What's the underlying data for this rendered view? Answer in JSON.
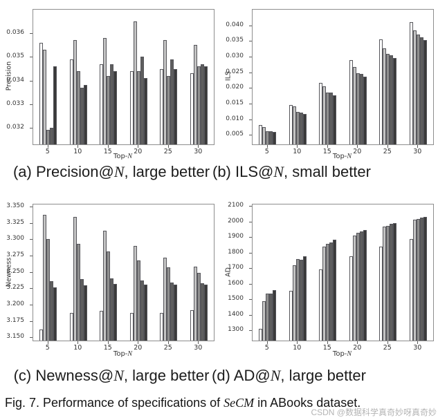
{
  "figure": {
    "caption": {
      "prefix": "Fig. 7. Performance of specifications of ",
      "math": "SeCM",
      "suffix": " in ABooks dataset."
    },
    "watermark": "CSDN @数据科学真奇妙呀真奇妙"
  },
  "style": {
    "bar_colors": [
      "#ffffff",
      "#c3c3c3",
      "#8f8f8f",
      "#5e5e5e",
      "#3a3a3a"
    ],
    "bar_edge_color": "#55555a",
    "axis_line_color": "#8d8d8d",
    "tick_color": "#595959",
    "text_color": "#2a2a2a",
    "watermark_color": "#b4b4b4"
  },
  "chart_data": [
    {
      "id": "precision",
      "type": "bar",
      "subcaption": {
        "prefix": "(a) Precision@",
        "math": "N",
        "suffix": ", large better"
      },
      "xlabel": "Top-N",
      "ylabel": "Precision",
      "categories": [
        "5",
        "10",
        "15",
        "20",
        "25",
        "30"
      ],
      "ylim": [
        0.0313,
        0.037
      ],
      "yticks": [
        0.032,
        0.033,
        0.034,
        0.035,
        0.036
      ],
      "ytick_labels": [
        "0.032",
        "0.033",
        "0.034",
        "0.035",
        "0.036"
      ],
      "grid": false,
      "legend": "none",
      "series": [
        {
          "name": "series-1",
          "values": [
            0.0356,
            0.0349,
            0.0347,
            0.0344,
            0.0345,
            0.0343
          ]
        },
        {
          "name": "series-2",
          "values": [
            0.0353,
            0.0357,
            0.0358,
            0.0365,
            0.0357,
            0.0355
          ]
        },
        {
          "name": "series-3",
          "values": [
            0.0319,
            0.0344,
            0.0342,
            0.0344,
            0.0342,
            0.0346
          ]
        },
        {
          "name": "series-4",
          "values": [
            0.032,
            0.0337,
            0.0347,
            0.035,
            0.0349,
            0.0347
          ]
        },
        {
          "name": "series-5",
          "values": [
            0.0346,
            0.0338,
            0.0344,
            0.0341,
            0.0345,
            0.0346
          ]
        }
      ]
    },
    {
      "id": "ils",
      "type": "bar",
      "subcaption": {
        "prefix": "(b) ILS@",
        "math": "N",
        "suffix": ", small better"
      },
      "xlabel": "Top-N",
      "ylabel": "ILS",
      "categories": [
        "5",
        "10",
        "15",
        "20",
        "25",
        "30"
      ],
      "ylim": [
        0.002,
        0.045
      ],
      "yticks": [
        0.005,
        0.01,
        0.015,
        0.02,
        0.025,
        0.03,
        0.035,
        0.04
      ],
      "ytick_labels": [
        "0.005",
        "0.010",
        "0.015",
        "0.020",
        "0.025",
        "0.030",
        "0.035",
        "0.040"
      ],
      "grid": false,
      "legend": "none",
      "series": [
        {
          "name": "series-1",
          "values": [
            0.0081,
            0.0146,
            0.0217,
            0.0288,
            0.0355,
            0.041
          ]
        },
        {
          "name": "series-2",
          "values": [
            0.0075,
            0.0142,
            0.0206,
            0.0266,
            0.0327,
            0.0383
          ]
        },
        {
          "name": "series-3",
          "values": [
            0.0063,
            0.0124,
            0.0186,
            0.0248,
            0.031,
            0.037
          ]
        },
        {
          "name": "series-4",
          "values": [
            0.0062,
            0.0122,
            0.0185,
            0.0244,
            0.0305,
            0.0362
          ]
        },
        {
          "name": "series-5",
          "values": [
            0.006,
            0.0118,
            0.0177,
            0.0237,
            0.0295,
            0.0353
          ]
        }
      ]
    },
    {
      "id": "newness",
      "type": "bar",
      "subcaption": {
        "prefix": "(c) Newness@",
        "math": "N",
        "suffix": ", large better"
      },
      "xlabel": "Top-N",
      "ylabel": "Newness",
      "categories": [
        "5",
        "10",
        "15",
        "20",
        "25",
        "30"
      ],
      "ylim": [
        3.145,
        3.353
      ],
      "yticks": [
        3.15,
        3.175,
        3.2,
        3.225,
        3.25,
        3.275,
        3.3,
        3.325,
        3.35
      ],
      "ytick_labels": [
        "3.150",
        "3.175",
        "3.200",
        "3.225",
        "3.250",
        "3.275",
        "3.300",
        "3.325",
        "3.350"
      ],
      "grid": false,
      "legend": "none",
      "series": [
        {
          "name": "series-1",
          "values": [
            3.162,
            3.187,
            3.19,
            3.187,
            3.187,
            3.191
          ]
        },
        {
          "name": "series-2",
          "values": [
            3.337,
            3.334,
            3.313,
            3.29,
            3.272,
            3.258
          ]
        },
        {
          "name": "series-3",
          "values": [
            3.3,
            3.293,
            3.281,
            3.268,
            3.257,
            3.248
          ]
        },
        {
          "name": "series-4",
          "values": [
            3.236,
            3.239,
            3.24,
            3.237,
            3.234,
            3.233
          ]
        },
        {
          "name": "series-5",
          "values": [
            3.226,
            3.23,
            3.232,
            3.231,
            3.231,
            3.231
          ]
        }
      ]
    },
    {
      "id": "ad",
      "type": "bar",
      "subcaption": {
        "prefix": "(d) AD@",
        "math": "N",
        "suffix": ", large better"
      },
      "xlabel": "Top-N",
      "ylabel": "AD",
      "categories": [
        "5",
        "10",
        "15",
        "20",
        "25",
        "30"
      ],
      "ylim": [
        1235,
        2110
      ],
      "yticks": [
        1300,
        1400,
        1500,
        1600,
        1700,
        1800,
        1900,
        2000,
        2100
      ],
      "ytick_labels": [
        "1300",
        "1400",
        "1500",
        "1600",
        "1700",
        "1800",
        "1900",
        "2000",
        "2100"
      ],
      "grid": false,
      "legend": "none",
      "series": [
        {
          "name": "series-1",
          "values": [
            1310,
            1553,
            1692,
            1775,
            1838,
            1890
          ]
        },
        {
          "name": "series-2",
          "values": [
            1490,
            1720,
            1840,
            1911,
            1968,
            2014
          ]
        },
        {
          "name": "series-3",
          "values": [
            1535,
            1757,
            1858,
            1928,
            1972,
            2018
          ]
        },
        {
          "name": "series-4",
          "values": [
            1537,
            1753,
            1868,
            1938,
            1984,
            2025
          ]
        },
        {
          "name": "series-5",
          "values": [
            1558,
            1775,
            1884,
            1947,
            1992,
            2030
          ]
        }
      ]
    }
  ]
}
